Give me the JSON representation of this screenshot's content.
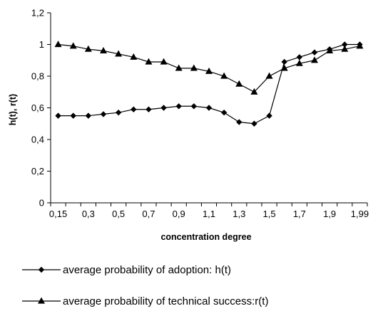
{
  "chart_data": {
    "type": "line",
    "xlabel": "concentration degree",
    "ylabel": "h(t), r(t)",
    "ylim": [
      0,
      1.2
    ],
    "yticks": [
      "0",
      "0,2",
      "0,4",
      "0,6",
      "0,8",
      "1",
      "1,2"
    ],
    "ytick_values": [
      0,
      0.2,
      0.4,
      0.6,
      0.8,
      1.0,
      1.2
    ],
    "xtick_labels": [
      "0,15",
      "0,3",
      "0,5",
      "0,7",
      "0,9",
      "1,1",
      "1,3",
      "1,5",
      "1,7",
      "1,9",
      "1,99"
    ],
    "grid": false,
    "legend_position": "bottom",
    "series": [
      {
        "name": "average probability of adoption: h(t)",
        "marker": "diamond",
        "values": [
          0.55,
          0.55,
          0.55,
          0.56,
          0.57,
          0.59,
          0.59,
          0.6,
          0.61,
          0.61,
          0.6,
          0.57,
          0.51,
          0.5,
          0.55,
          0.89,
          0.92,
          0.95,
          0.97,
          1.0,
          1.0
        ]
      },
      {
        "name": "average probability of technical success:r(t)",
        "marker": "triangle",
        "values": [
          1.0,
          0.99,
          0.97,
          0.96,
          0.94,
          0.92,
          0.89,
          0.89,
          0.85,
          0.85,
          0.83,
          0.8,
          0.75,
          0.7,
          0.8,
          0.85,
          0.88,
          0.9,
          0.96,
          0.97,
          0.99
        ]
      }
    ]
  }
}
